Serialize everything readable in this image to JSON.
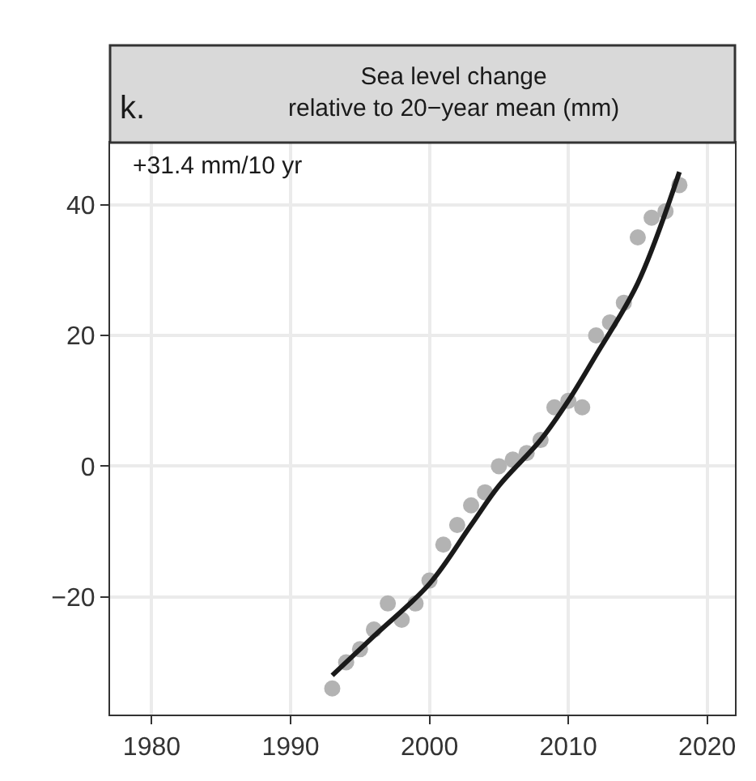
{
  "chart_data": {
    "type": "scatter",
    "title": "Sea level change\nrelative to 20−year mean (mm)",
    "annotations": [
      "k.",
      "+31.4 mm/10 yr"
    ],
    "series": [
      {
        "color": "#b3b3b3",
        "marker": "circle",
        "x": [
          1993,
          1994,
          1995,
          1996,
          1997,
          1998,
          1999,
          2000,
          2001,
          2002,
          2003,
          2004,
          2005,
          2006,
          2007,
          2008,
          2009,
          2010,
          2011,
          2012,
          2013,
          2014,
          2015,
          2016,
          2017,
          2018
        ],
        "values": [
          -34,
          -30,
          -28,
          -25,
          -21,
          -23.5,
          -21,
          -17.5,
          -12,
          -9,
          -6,
          -4,
          0,
          1,
          2,
          4,
          9,
          10,
          9,
          20,
          22,
          25,
          35,
          38,
          39,
          43
        ]
      },
      {
        "type": "line",
        "color": "#1a1a1a",
        "x": [
          1993,
          1996,
          2000,
          2003,
          2005,
          2008,
          2010,
          2012,
          2015,
          2018
        ],
        "values": [
          -32,
          -26,
          -18,
          -9,
          -3,
          4,
          10,
          17,
          28,
          45
        ]
      }
    ],
    "xlim": [
      1977,
      2022
    ],
    "xticks": [
      1980,
      1990,
      2000,
      2010,
      2020
    ],
    "ylim": [
      -38,
      49.5
    ],
    "yticks": [
      -20,
      0,
      20,
      40
    ],
    "grid": true
  }
}
